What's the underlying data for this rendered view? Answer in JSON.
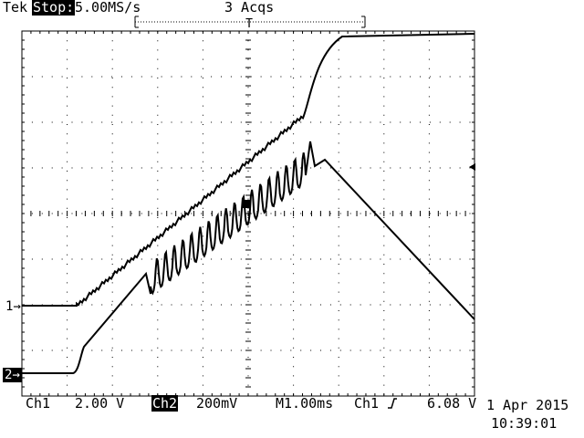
{
  "header": {
    "brand": "Tek",
    "state": "Stop:",
    "sample_rate": "5.00MS/s",
    "acquisitions": "3 Acqs"
  },
  "footer": {
    "ch1_label": "Ch1",
    "ch1_scale": "2.00 V",
    "ch2_label": "Ch2",
    "ch2_scale": "200mV",
    "timebase": "M1.00ms",
    "trigger_source": "Ch1",
    "trigger_level": "6.08 V",
    "date": "1 Apr 2015",
    "time": "10:39:01"
  },
  "markers": {
    "ch1": "1",
    "ch2": "2"
  },
  "colors": {
    "background": "#ffffff",
    "trace": "#000000",
    "graticule": "#000000"
  },
  "icons": {
    "trigger_slope": "rising-edge-icon",
    "trigger_level": "left-arrow-icon"
  }
}
